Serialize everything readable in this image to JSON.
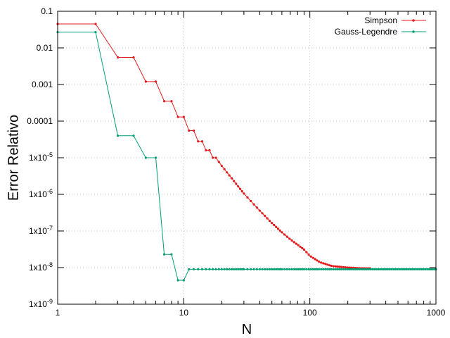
{
  "chart_data": {
    "type": "line",
    "xlabel": "N",
    "ylabel": "Error Relativo",
    "xscale": "log",
    "yscale": "log",
    "xlim": [
      1,
      1000
    ],
    "ylim": [
      1e-09,
      0.1
    ],
    "grid": true,
    "legend_position": "top-right",
    "x_ticks": [
      {
        "value": 1,
        "label": "1"
      },
      {
        "value": 10,
        "label": "10"
      },
      {
        "value": 100,
        "label": "100"
      },
      {
        "value": 1000,
        "label": "1000"
      }
    ],
    "y_ticks": [
      {
        "value": 0.1,
        "label": "0.1",
        "base": "",
        "exp": ""
      },
      {
        "value": 0.01,
        "label": "0.01",
        "base": "",
        "exp": ""
      },
      {
        "value": 0.001,
        "label": "0.001",
        "base": "",
        "exp": ""
      },
      {
        "value": 0.0001,
        "label": "0.0001",
        "base": "",
        "exp": ""
      },
      {
        "value": 1e-05,
        "label": "",
        "base": "1x10",
        "exp": "-5"
      },
      {
        "value": 1e-06,
        "label": "",
        "base": "1x10",
        "exp": "-6"
      },
      {
        "value": 1e-07,
        "label": "",
        "base": "1x10",
        "exp": "-7"
      },
      {
        "value": 1e-08,
        "label": "",
        "base": "1x10",
        "exp": "-8"
      },
      {
        "value": 1e-09,
        "label": "",
        "base": "1x10",
        "exp": "-9"
      }
    ],
    "series": [
      {
        "name": "Simpson",
        "color": "#e41a1c",
        "n_range": [
          1,
          300
        ],
        "points": [
          [
            1,
            0.045
          ],
          [
            2,
            0.045
          ],
          [
            3,
            0.0055
          ],
          [
            4,
            0.0055
          ],
          [
            5,
            0.0012
          ],
          [
            6,
            0.0012
          ],
          [
            7,
            0.00035
          ],
          [
            8,
            0.00035
          ],
          [
            9,
            0.00013
          ],
          [
            10,
            0.00013
          ],
          [
            11,
            5.5e-05
          ],
          [
            12,
            5.5e-05
          ],
          [
            13,
            2.8e-05
          ],
          [
            14,
            2.8e-05
          ],
          [
            15,
            1.6e-05
          ],
          [
            16,
            1.6e-05
          ],
          [
            17,
            1e-05
          ],
          [
            18,
            1e-05
          ],
          [
            20,
            6e-06
          ],
          [
            30,
            1.05e-06
          ],
          [
            40,
            3.6e-07
          ],
          [
            50,
            1.65e-07
          ],
          [
            60,
            9.2e-08
          ],
          [
            70,
            5.9e-08
          ],
          [
            80,
            4.2e-08
          ],
          [
            90,
            3.1e-08
          ],
          [
            100,
            2.1e-08
          ],
          [
            120,
            1.4e-08
          ],
          [
            150,
            1.1e-08
          ],
          [
            200,
            1e-08
          ],
          [
            250,
            9.6e-09
          ],
          [
            300,
            9.5e-09
          ]
        ]
      },
      {
        "name": "Gauss-Legendre",
        "color": "#009e73",
        "n_range": [
          1,
          1000
        ],
        "points": [
          [
            1,
            0.027
          ],
          [
            2,
            0.027
          ],
          [
            3,
            4e-05
          ],
          [
            4,
            4e-05
          ],
          [
            5,
            1e-05
          ],
          [
            6,
            1e-05
          ],
          [
            7,
            2.3e-08
          ],
          [
            8,
            2.3e-08
          ],
          [
            9,
            4.5e-09
          ],
          [
            10,
            4.5e-09
          ],
          [
            11,
            9e-09
          ],
          [
            1000,
            9e-09
          ]
        ]
      }
    ]
  }
}
